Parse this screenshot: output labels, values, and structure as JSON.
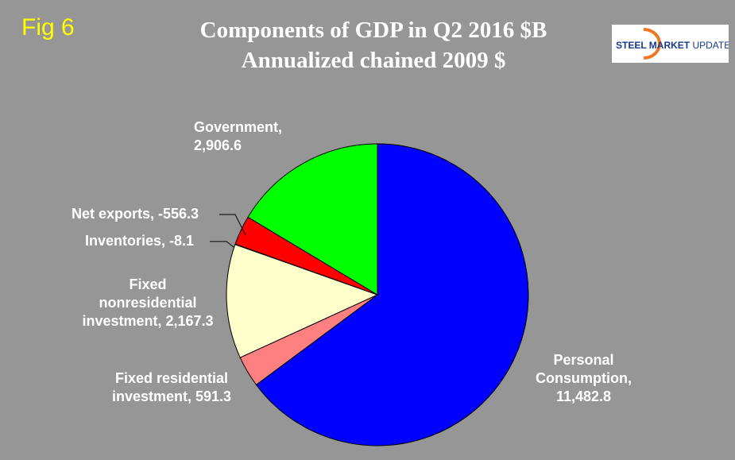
{
  "fig_label": "Fig 6",
  "logo_text": "STEEL MARKET UPDATE",
  "chart_data": {
    "type": "pie",
    "title": "Components of GDP in Q2  2016 $B",
    "subtitle": "Annualized chained 2009 $",
    "start": "top, clockwise",
    "slices": [
      {
        "name": "Personal Consumption",
        "value": 11482.8,
        "label": "11,482.8",
        "color": "#0000ff"
      },
      {
        "name": "Fixed residential investment",
        "value": 591.3,
        "label": "591.3",
        "color": "#ff8080"
      },
      {
        "name": "Fixed nonresidential investment",
        "value": 2167.3,
        "label": "2,167.3",
        "color": "#ffffcc"
      },
      {
        "name": "Inventories",
        "value": -8.1,
        "label": "-8.1",
        "color": "#ccffff"
      },
      {
        "name": "Net exports",
        "value": -556.3,
        "label": "-556.3",
        "color": "#ff0000"
      },
      {
        "name": "Government",
        "value": 2906.6,
        "label": "2,906.6",
        "color": "#00ff00"
      }
    ]
  },
  "labels": {
    "pc1": "Personal",
    "pc2": "Consumption,",
    "pc3": "11,482.8",
    "fr1": "Fixed residential",
    "fr2": "investment, 591.3",
    "fn1": "Fixed",
    "fn2": "nonresidential",
    "fn3": "investment, 2,167.3",
    "inv": "Inventories, -8.1",
    "nx": "Net exports, -556.3",
    "gov1": "Government,",
    "gov2": "2,906.6"
  }
}
